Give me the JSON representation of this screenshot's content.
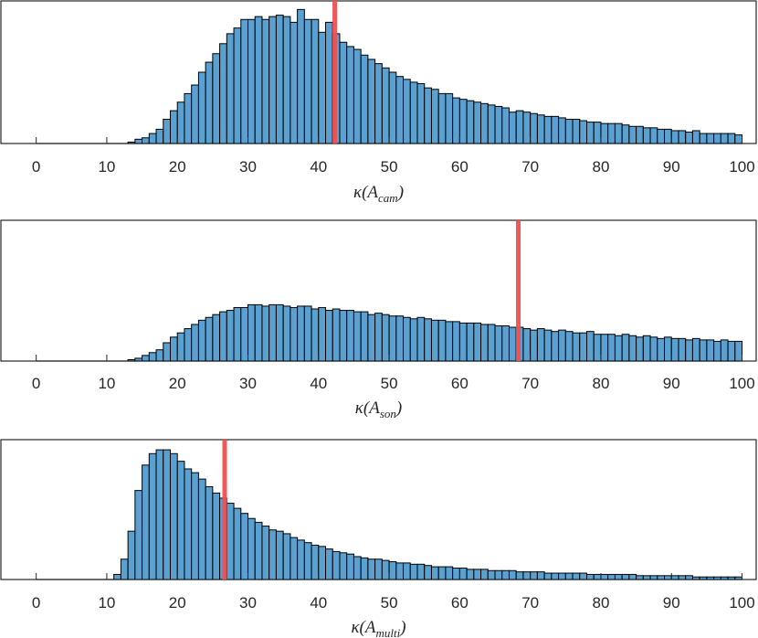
{
  "colors": {
    "bar_fill": "#5aa0d0",
    "bar_edge": "#000000",
    "marker": "#f05050",
    "axis": "#262626"
  },
  "chart_data": [
    {
      "type": "bar",
      "xlabel": {
        "symbol": "κ(A",
        "subscript": "cam",
        "close": ")"
      },
      "xlim": [
        -5,
        102
      ],
      "xticks": [
        0,
        10,
        20,
        30,
        40,
        50,
        60,
        70,
        80,
        90,
        100
      ],
      "grid": false,
      "bin_width": 1,
      "x": [
        1,
        2,
        3,
        4,
        5,
        6,
        7,
        8,
        9,
        10,
        11,
        12,
        13,
        14,
        15,
        16,
        17,
        18,
        19,
        20,
        21,
        22,
        23,
        24,
        25,
        26,
        27,
        28,
        29,
        30,
        31,
        32,
        33,
        34,
        35,
        36,
        37,
        38,
        39,
        40,
        41,
        42,
        43,
        44,
        45,
        46,
        47,
        48,
        49,
        50,
        51,
        52,
        53,
        54,
        55,
        56,
        57,
        58,
        59,
        60,
        61,
        62,
        63,
        64,
        65,
        66,
        67,
        68,
        69,
        70,
        71,
        72,
        73,
        74,
        75,
        76,
        77,
        78,
        79,
        80,
        81,
        82,
        83,
        84,
        85,
        86,
        87,
        88,
        89,
        90,
        91,
        92,
        93,
        94,
        95,
        96,
        97,
        98,
        99,
        100
      ],
      "values": [
        0,
        0,
        0,
        0,
        0,
        0,
        0,
        0,
        0,
        0,
        0,
        0,
        0,
        0.01,
        0.03,
        0.04,
        0.07,
        0.1,
        0.17,
        0.23,
        0.29,
        0.35,
        0.41,
        0.5,
        0.57,
        0.63,
        0.7,
        0.77,
        0.81,
        0.87,
        0.87,
        0.89,
        0.87,
        0.89,
        0.9,
        0.89,
        0.85,
        0.94,
        0.87,
        0.87,
        0.78,
        0.85,
        0.77,
        0.71,
        0.68,
        0.66,
        0.62,
        0.59,
        0.56,
        0.53,
        0.5,
        0.47,
        0.45,
        0.43,
        0.42,
        0.39,
        0.38,
        0.35,
        0.35,
        0.32,
        0.31,
        0.3,
        0.29,
        0.28,
        0.27,
        0.26,
        0.25,
        0.22,
        0.23,
        0.22,
        0.21,
        0.2,
        0.19,
        0.19,
        0.18,
        0.17,
        0.17,
        0.16,
        0.15,
        0.15,
        0.14,
        0.14,
        0.14,
        0.13,
        0.12,
        0.12,
        0.11,
        0.11,
        0.1,
        0.1,
        0.09,
        0.09,
        0.08,
        0.09,
        0.07,
        0.07,
        0.07,
        0.07,
        0.07,
        0.06
      ],
      "marker": 42.3
    },
    {
      "type": "bar",
      "xlabel": {
        "symbol": "κ(A",
        "subscript": "son",
        "close": ")"
      },
      "xlim": [
        -5,
        102
      ],
      "xticks": [
        0,
        10,
        20,
        30,
        40,
        50,
        60,
        70,
        80,
        90,
        100
      ],
      "grid": false,
      "bin_width": 1,
      "x": [
        1,
        2,
        3,
        4,
        5,
        6,
        7,
        8,
        9,
        10,
        11,
        12,
        13,
        14,
        15,
        16,
        17,
        18,
        19,
        20,
        21,
        22,
        23,
        24,
        25,
        26,
        27,
        28,
        29,
        30,
        31,
        32,
        33,
        34,
        35,
        36,
        37,
        38,
        39,
        40,
        41,
        42,
        43,
        44,
        45,
        46,
        47,
        48,
        49,
        50,
        51,
        52,
        53,
        54,
        55,
        56,
        57,
        58,
        59,
        60,
        61,
        62,
        63,
        64,
        65,
        66,
        67,
        68,
        69,
        70,
        71,
        72,
        73,
        74,
        75,
        76,
        77,
        78,
        79,
        80,
        81,
        82,
        83,
        84,
        85,
        86,
        87,
        88,
        89,
        90,
        91,
        92,
        93,
        94,
        95,
        96,
        97,
        98,
        99,
        100
      ],
      "values": [
        0,
        0,
        0,
        0,
        0,
        0,
        0,
        0,
        0,
        0,
        0,
        0,
        0,
        0.01,
        0.02,
        0.04,
        0.06,
        0.08,
        0.13,
        0.17,
        0.2,
        0.23,
        0.26,
        0.29,
        0.31,
        0.33,
        0.35,
        0.36,
        0.38,
        0.38,
        0.4,
        0.4,
        0.39,
        0.4,
        0.4,
        0.39,
        0.38,
        0.39,
        0.39,
        0.37,
        0.38,
        0.36,
        0.37,
        0.36,
        0.36,
        0.35,
        0.35,
        0.33,
        0.34,
        0.33,
        0.32,
        0.32,
        0.31,
        0.3,
        0.31,
        0.3,
        0.29,
        0.29,
        0.28,
        0.28,
        0.27,
        0.27,
        0.27,
        0.26,
        0.26,
        0.25,
        0.25,
        0.24,
        0.24,
        0.23,
        0.22,
        0.23,
        0.22,
        0.21,
        0.22,
        0.21,
        0.2,
        0.2,
        0.21,
        0.19,
        0.19,
        0.19,
        0.18,
        0.19,
        0.18,
        0.17,
        0.18,
        0.17,
        0.16,
        0.17,
        0.16,
        0.16,
        0.15,
        0.16,
        0.15,
        0.15,
        0.14,
        0.15,
        0.14,
        0.14
      ],
      "marker": 68.3
    },
    {
      "type": "bar",
      "xlabel": {
        "symbol": "κ(A",
        "subscript": "multi",
        "close": ")"
      },
      "xlim": [
        -5,
        102
      ],
      "xticks": [
        0,
        10,
        20,
        30,
        40,
        50,
        60,
        70,
        80,
        90,
        100
      ],
      "grid": false,
      "bin_width": 1,
      "x": [
        1,
        2,
        3,
        4,
        5,
        6,
        7,
        8,
        9,
        10,
        11,
        12,
        13,
        14,
        15,
        16,
        17,
        18,
        19,
        20,
        21,
        22,
        23,
        24,
        25,
        26,
        27,
        28,
        29,
        30,
        31,
        32,
        33,
        34,
        35,
        36,
        37,
        38,
        39,
        40,
        41,
        42,
        43,
        44,
        45,
        46,
        47,
        48,
        49,
        50,
        51,
        52,
        53,
        54,
        55,
        56,
        57,
        58,
        59,
        60,
        61,
        62,
        63,
        64,
        65,
        66,
        67,
        68,
        69,
        70,
        71,
        72,
        73,
        74,
        75,
        76,
        77,
        78,
        79,
        80,
        81,
        82,
        83,
        84,
        85,
        86,
        87,
        88,
        89,
        90,
        91,
        92,
        93,
        94,
        95,
        96,
        97,
        98,
        99,
        100
      ],
      "values": [
        0,
        0,
        0,
        0,
        0,
        0,
        0,
        0,
        0,
        0,
        0,
        0.04,
        0.16,
        0.38,
        0.7,
        0.9,
        0.99,
        1.02,
        1.02,
        0.99,
        0.93,
        0.87,
        0.84,
        0.79,
        0.73,
        0.68,
        0.64,
        0.6,
        0.56,
        0.52,
        0.48,
        0.45,
        0.42,
        0.39,
        0.38,
        0.36,
        0.33,
        0.31,
        0.29,
        0.27,
        0.26,
        0.24,
        0.22,
        0.21,
        0.2,
        0.18,
        0.17,
        0.16,
        0.16,
        0.15,
        0.14,
        0.13,
        0.13,
        0.12,
        0.12,
        0.11,
        0.1,
        0.1,
        0.1,
        0.09,
        0.09,
        0.08,
        0.08,
        0.08,
        0.07,
        0.07,
        0.07,
        0.07,
        0.06,
        0.06,
        0.06,
        0.06,
        0.05,
        0.05,
        0.05,
        0.05,
        0.05,
        0.05,
        0.04,
        0.04,
        0.04,
        0.04,
        0.04,
        0.04,
        0.04,
        0.03,
        0.03,
        0.03,
        0.03,
        0.03,
        0.03,
        0.03,
        0.03,
        0.02,
        0.02,
        0.02,
        0.02,
        0.02,
        0.02,
        0.02
      ],
      "marker": 26.7
    }
  ]
}
